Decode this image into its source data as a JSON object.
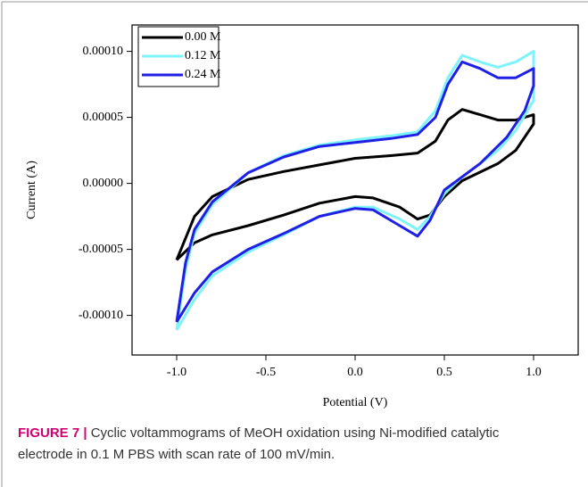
{
  "chart_data": {
    "type": "line",
    "xlabel": "Potential (V)",
    "ylabel": "Current (A)",
    "xlim": [
      -1.25,
      1.25
    ],
    "xticks": [
      {
        "value": -1,
        "label": "-1.0"
      },
      -0.5,
      {
        "value": 0,
        "label": "0.0"
      },
      0.5,
      {
        "value": 1,
        "label": "1.0"
      }
    ],
    "ylim": [
      -0.00013,
      0.00012
    ],
    "yticks": [
      {
        "value": -0.0001,
        "label": "-0.00010"
      },
      {
        "value": -5e-05,
        "label": "-0.00005"
      },
      {
        "value": 0,
        "label": "0.00000"
      },
      {
        "value": 5e-05,
        "label": "0.00005"
      },
      {
        "value": 0.0001,
        "label": "0.00010"
      }
    ],
    "legend": "upper left",
    "series": [
      {
        "name": "0.00 M",
        "color": "#000000",
        "x": [
          -1.0,
          -0.9,
          -0.8,
          -0.6,
          -0.4,
          -0.2,
          0.0,
          0.2,
          0.35,
          0.45,
          0.52,
          0.6,
          0.7,
          0.8,
          0.9,
          1.0,
          1.0,
          0.9,
          0.8,
          0.6,
          0.5,
          0.42,
          0.35,
          0.25,
          0.1,
          0.0,
          -0.2,
          -0.4,
          -0.6,
          -0.8,
          -0.9,
          -1.0
        ],
        "values": [
          -5.8e-05,
          -2.5e-05,
          -1e-05,
          3e-06,
          9e-06,
          1.4e-05,
          1.9e-05,
          2.1e-05,
          2.3e-05,
          3.2e-05,
          4.8e-05,
          5.6e-05,
          5.2e-05,
          4.8e-05,
          4.8e-05,
          5.2e-05,
          4.5e-05,
          2.5e-05,
          1.5e-05,
          2e-06,
          -1e-05,
          -2.4e-05,
          -2.7e-05,
          -1.8e-05,
          -1.1e-05,
          -1e-05,
          -1.5e-05,
          -2.4e-05,
          -3.2e-05,
          -3.9e-05,
          -4.5e-05,
          -5.8e-05
        ]
      },
      {
        "name": "0.12 M",
        "color": "#7ff3fa",
        "x": [
          -1.0,
          -0.95,
          -0.9,
          -0.8,
          -0.6,
          -0.4,
          -0.2,
          0.0,
          0.2,
          0.35,
          0.45,
          0.52,
          0.6,
          0.7,
          0.8,
          0.9,
          1.0,
          1.0,
          0.9,
          0.8,
          0.6,
          0.5,
          0.42,
          0.35,
          0.25,
          0.1,
          0.0,
          -0.2,
          -0.4,
          -0.6,
          -0.8,
          -0.9,
          -1.0
        ],
        "values": [
          -0.000111,
          -6.5e-05,
          -3.8e-05,
          -1.6e-05,
          8e-06,
          2.1e-05,
          2.9e-05,
          3.3e-05,
          3.6e-05,
          3.9e-05,
          5.5e-05,
          8e-05,
          9.7e-05,
          9.2e-05,
          8.8e-05,
          9.2e-05,
          0.0001,
          6.3e-05,
          4e-05,
          2.5e-05,
          5e-06,
          -8e-06,
          -2.5e-05,
          -3.5e-05,
          -2.7e-05,
          -1.8e-05,
          -1.8e-05,
          -2.5e-05,
          -3.9e-05,
          -5.2e-05,
          -7e-05,
          -8.8e-05,
          -0.000111
        ]
      },
      {
        "name": "0.24 M",
        "color": "#1f1fe6",
        "x": [
          -1.0,
          -0.95,
          -0.9,
          -0.8,
          -0.6,
          -0.4,
          -0.2,
          0.0,
          0.2,
          0.35,
          0.45,
          0.52,
          0.6,
          0.7,
          0.8,
          0.9,
          1.0,
          1.0,
          0.95,
          0.85,
          0.7,
          0.5,
          0.42,
          0.35,
          0.25,
          0.1,
          0.0,
          -0.2,
          -0.4,
          -0.6,
          -0.8,
          -0.9,
          -1.0
        ],
        "values": [
          -0.000105,
          -6e-05,
          -3.5e-05,
          -1.4e-05,
          8e-06,
          2e-05,
          2.8e-05,
          3.1e-05,
          3.4e-05,
          3.7e-05,
          5e-05,
          7.5e-05,
          9.2e-05,
          8.7e-05,
          8e-05,
          8e-05,
          8.7e-05,
          7.4e-05,
          5.5e-05,
          3.5e-05,
          1.5e-05,
          -5e-06,
          -2.8e-05,
          -4e-05,
          -3.2e-05,
          -2e-05,
          -1.9e-05,
          -2.5e-05,
          -3.8e-05,
          -5e-05,
          -6.7e-05,
          -8.3e-05,
          -0.000105
        ]
      }
    ]
  },
  "caption": {
    "label": "FIGURE 7 |",
    "text": "Cyclic voltammograms of MeOH oxidation using Ni-modified catalytic electrode in 0.1 M PBS with scan rate of 100 mV/min."
  }
}
